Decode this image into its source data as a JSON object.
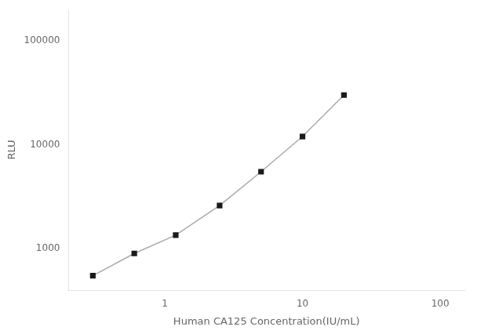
{
  "chart_data": {
    "type": "line",
    "x": [
      0.3,
      0.6,
      1.2,
      2.5,
      5.0,
      10.0,
      20.0
    ],
    "values": [
      550,
      900,
      1350,
      2600,
      5500,
      12000,
      30000
    ],
    "xlabel": "Human CA125 Concentration(IU/mL)",
    "ylabel": "RLU",
    "xlim": [
      0.2,
      150
    ],
    "ylim": [
      400,
      200000
    ],
    "xticks": [
      1,
      10,
      100
    ],
    "yticks": [
      1000,
      10000,
      100000
    ],
    "log": true,
    "grid": false,
    "color": "#aaaaaa",
    "colors": [
      "#1a1a1a",
      "#1a1a1a",
      "#1a1a1a",
      "#1a1a1a",
      "#1a1a1a",
      "#1a1a1a",
      "#1a1a1a"
    ],
    "marker": "square"
  }
}
